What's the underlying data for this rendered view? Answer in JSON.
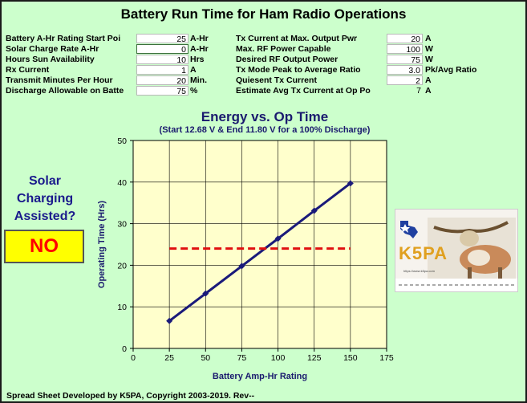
{
  "title": "Battery Run Time for Ham Radio Operations",
  "left_params": [
    {
      "label": "Battery A-Hr Rating Start Poi",
      "value": "25",
      "unit": "A-Hr"
    },
    {
      "label": "Solar Charge Rate A-Hr",
      "value": "0",
      "unit": "A-Hr"
    },
    {
      "label": "Hours Sun Availability",
      "value": "10",
      "unit": "Hrs"
    },
    {
      "label": "Rx Current",
      "value": "1",
      "unit": "A"
    },
    {
      "label": "Transmit Minutes Per Hour",
      "value": "20",
      "unit": "Min."
    },
    {
      "label": "Discharge Allowable on Batte",
      "value": "75",
      "unit": "%"
    }
  ],
  "right_params": [
    {
      "label": "Tx Current at Max. Output Pwr",
      "value": "20",
      "unit": "A"
    },
    {
      "label": "Max. RF Power Capable",
      "value": "100",
      "unit": "W"
    },
    {
      "label": "Desired RF Output Power",
      "value": "75",
      "unit": "W"
    },
    {
      "label": "Tx Mode Peak to Average Ratio",
      "value": "3.0",
      "unit": "Pk/Avg Ratio"
    },
    {
      "label": "Quiesent Tx Current",
      "value": "2",
      "unit": "A"
    },
    {
      "label": "Estimate Avg Tx Current at Op Po",
      "value": "7",
      "unit": "A"
    }
  ],
  "solar": {
    "question_lines": [
      "Solar",
      "Charging",
      "Assisted?"
    ],
    "answer": "NO"
  },
  "chart_data": {
    "type": "line",
    "title": "Energy vs. Op Time",
    "subtitle": "(Start 12.68 V & End 11.80 V for a 100% Discharge)",
    "xlabel": "Battery Amp-Hr Rating",
    "ylabel": "Operating Time (Hrs)",
    "xlim": [
      0,
      175
    ],
    "ylim": [
      0,
      50
    ],
    "x_ticks": [
      0,
      25,
      50,
      75,
      100,
      125,
      150,
      175
    ],
    "y_ticks": [
      0,
      10,
      20,
      30,
      40,
      50
    ],
    "grid": true,
    "series": [
      {
        "x": [
          25,
          50,
          75,
          100,
          125,
          150
        ],
        "values": [
          6.6,
          13.2,
          19.8,
          26.4,
          33.1,
          39.7
        ],
        "color": "#1a1a7a",
        "style": "solid-markers"
      },
      {
        "x": [
          25,
          150
        ],
        "values": [
          24,
          24
        ],
        "color": "#e01010",
        "style": "dashed"
      }
    ],
    "plot_bg": "#ffffcc"
  },
  "logo": {
    "text": "K5PA",
    "text_color": "#e0a020",
    "caption": "https://www.k5pa.com"
  },
  "footer": "Spread Sheet Developed by K5PA, Copyright 2003-2019. Rev--"
}
